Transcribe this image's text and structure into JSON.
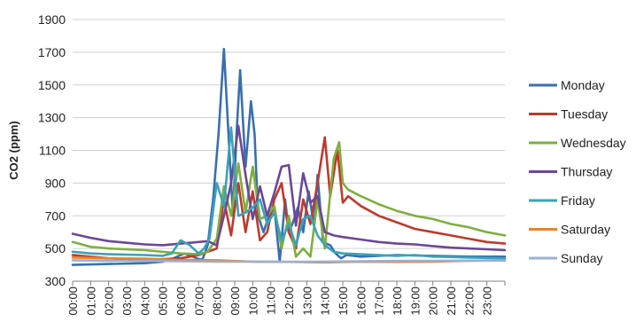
{
  "chart_data": {
    "type": "line",
    "title": "",
    "xlabel": "",
    "ylabel": "CO2 (ppm)",
    "ylim": [
      300,
      1900
    ],
    "yticks": [
      300,
      500,
      700,
      900,
      1100,
      1300,
      1500,
      1700,
      1900
    ],
    "xlim": [
      0,
      24
    ],
    "categories": [
      "00:00",
      "01:00",
      "02:00",
      "03:00",
      "04:00",
      "05:00",
      "06:00",
      "07:00",
      "08:00",
      "09:00",
      "10:00",
      "11:00",
      "12:00",
      "13:00",
      "14:00",
      "15:00",
      "16:00",
      "17:00",
      "18:00",
      "19:00",
      "20:00",
      "21:00",
      "22:00",
      "23:00"
    ],
    "grid": "horizontal",
    "legend_position": "right",
    "series": [
      {
        "name": "Monday",
        "color": "#3a6fb0",
        "x": [
          0,
          2,
          4,
          5,
          5.6,
          6.2,
          6.9,
          7.2,
          7.5,
          7.8,
          8.1,
          8.4,
          8.7,
          8.9,
          9.1,
          9.3,
          9.6,
          9.9,
          10.1,
          10.3,
          10.6,
          10.9,
          11.2,
          11.5,
          11.8,
          12.0,
          12.2,
          12.5,
          12.8,
          13.1,
          13.4,
          13.6,
          13.9,
          14.3,
          14.6,
          14.9,
          15.2,
          16,
          18,
          20,
          22,
          24
        ],
        "y": [
          400,
          405,
          410,
          420,
          440,
          470,
          440,
          430,
          520,
          800,
          1200,
          1720,
          1100,
          700,
          1200,
          1590,
          1000,
          1400,
          1200,
          700,
          600,
          700,
          750,
          420,
          800,
          600,
          650,
          750,
          600,
          850,
          640,
          950,
          540,
          520,
          470,
          440,
          460,
          450,
          460,
          455,
          450,
          450
        ]
      },
      {
        "name": "Tuesday",
        "color": "#c0392b",
        "x": [
          0,
          2,
          4,
          6,
          6.5,
          7,
          7.5,
          8,
          8.4,
          8.8,
          9.2,
          9.6,
          10,
          10.4,
          10.8,
          11.2,
          11.6,
          12,
          12.4,
          12.8,
          13.2,
          13.6,
          14.0,
          14.3,
          14.7,
          15.0,
          15.3,
          16,
          17,
          18,
          19,
          20,
          21,
          22,
          23,
          24
        ],
        "y": [
          460,
          440,
          430,
          440,
          450,
          460,
          480,
          500,
          800,
          580,
          900,
          600,
          850,
          550,
          600,
          800,
          900,
          600,
          500,
          800,
          650,
          900,
          1180,
          820,
          1100,
          780,
          820,
          760,
          700,
          660,
          620,
          600,
          580,
          560,
          540,
          530
        ]
      },
      {
        "name": "Wednesday",
        "color": "#7faf3f",
        "x": [
          0,
          1,
          2,
          4,
          6,
          7,
          7.5,
          8,
          8.4,
          8.8,
          9.2,
          9.6,
          10,
          10.4,
          10.8,
          11.2,
          11.6,
          12,
          12.4,
          12.8,
          13.2,
          13.6,
          14.0,
          14.5,
          14.8,
          15.0,
          15.3,
          16,
          17,
          18,
          19,
          20,
          21,
          22,
          23,
          24
        ],
        "y": [
          540,
          510,
          500,
          490,
          470,
          465,
          480,
          560,
          880,
          700,
          1020,
          720,
          1000,
          680,
          700,
          760,
          500,
          700,
          450,
          500,
          450,
          800,
          500,
          1050,
          1150,
          900,
          860,
          820,
          770,
          730,
          700,
          680,
          650,
          630,
          600,
          580
        ]
      },
      {
        "name": "Thursday",
        "color": "#6c4796",
        "x": [
          0,
          1,
          2,
          3,
          4,
          5,
          6,
          7,
          7.5,
          8,
          8.4,
          8.8,
          9.2,
          9.6,
          10,
          10.4,
          10.8,
          11.2,
          11.6,
          12,
          12.4,
          12.8,
          13.2,
          13.6,
          14,
          14.5,
          15,
          16,
          17,
          18,
          19,
          20,
          21,
          22,
          23,
          24
        ],
        "y": [
          590,
          565,
          545,
          535,
          525,
          520,
          530,
          540,
          545,
          520,
          700,
          900,
          1250,
          950,
          680,
          880,
          700,
          840,
          1000,
          1010,
          640,
          960,
          780,
          820,
          600,
          580,
          570,
          555,
          540,
          530,
          525,
          515,
          505,
          500,
          495,
          490
        ]
      },
      {
        "name": "Friday",
        "color": "#3aa3b8",
        "x": [
          0,
          1,
          2,
          4,
          5,
          5.5,
          6,
          6.5,
          7,
          7.3,
          7.6,
          8,
          8.4,
          8.8,
          9.2,
          9.6,
          10,
          10.4,
          10.8,
          11.2,
          11.6,
          12,
          12.4,
          12.8,
          13.2,
          13.6,
          14,
          14.5,
          15,
          16,
          17,
          18,
          19,
          20,
          21,
          22,
          23,
          24
        ],
        "y": [
          480,
          470,
          465,
          460,
          455,
          470,
          550,
          520,
          470,
          500,
          560,
          900,
          760,
          1240,
          700,
          720,
          750,
          800,
          650,
          720,
          550,
          650,
          520,
          680,
          700,
          580,
          520,
          480,
          470,
          465,
          460,
          455,
          460,
          450,
          448,
          445,
          442,
          440
        ]
      },
      {
        "name": "Saturday",
        "color": "#e8832a",
        "x": [
          0,
          2,
          4,
          6,
          8,
          10,
          12,
          14,
          16,
          18,
          20,
          22,
          24
        ],
        "y": [
          445,
          440,
          438,
          430,
          428,
          420,
          418,
          415,
          420,
          418,
          420,
          425,
          428
        ]
      },
      {
        "name": "Sunday",
        "color": "#99b0d6",
        "x": [
          0,
          2,
          4,
          6,
          8,
          10,
          12,
          14,
          16,
          18,
          20,
          22,
          24
        ],
        "y": [
          428,
          425,
          424,
          422,
          420,
          420,
          418,
          420,
          422,
          424,
          425,
          426,
          426
        ]
      }
    ]
  }
}
